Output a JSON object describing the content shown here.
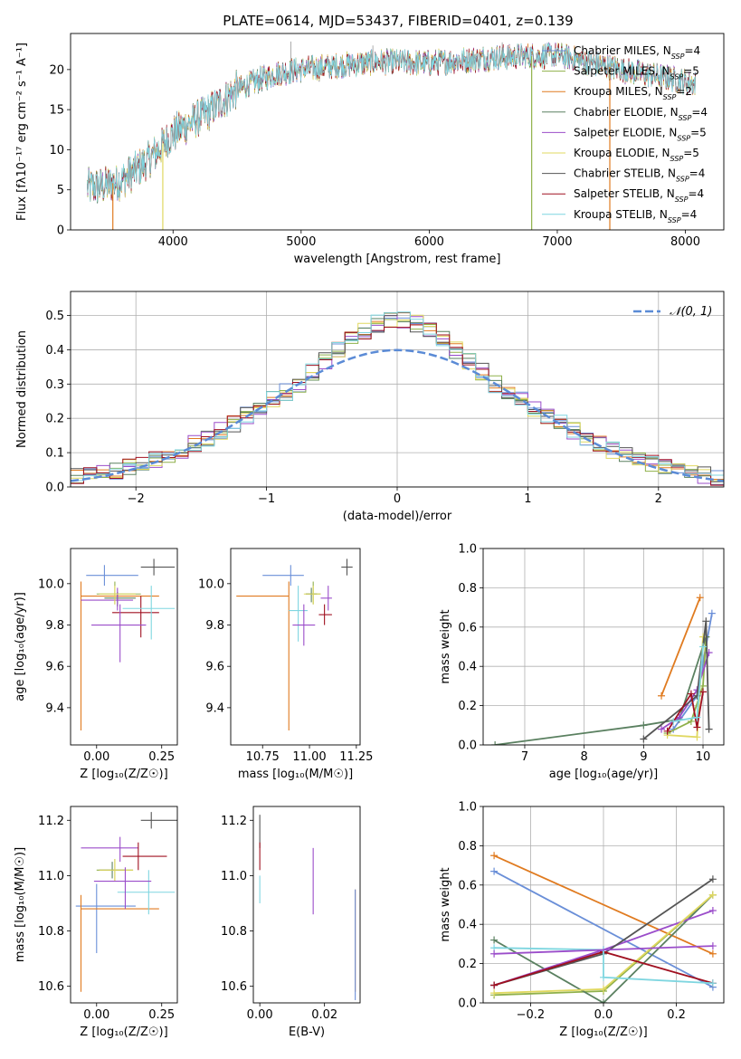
{
  "figure": {
    "title": "PLATE=0614, MJD=53437, FIBERID=0401, z=0.139"
  },
  "models": [
    {
      "name": "Chabrier MILES",
      "nssp": "4",
      "color": "#6a8fd8"
    },
    {
      "name": "Salpeter MILES",
      "nssp": "5",
      "color": "#8fb04a"
    },
    {
      "name": "Kroupa MILES",
      "nssp": "2",
      "color": "#e07b20"
    },
    {
      "name": "Chabrier ELODIE",
      "nssp": "4",
      "color": "#5a8060"
    },
    {
      "name": "Salpeter ELODIE",
      "nssp": "5",
      "color": "#9b4dca"
    },
    {
      "name": "Kroupa ELODIE",
      "nssp": "5",
      "color": "#e0d860"
    },
    {
      "name": "Chabrier STELIB",
      "nssp": "4",
      "color": "#555555"
    },
    {
      "name": "Salpeter STELIB",
      "nssp": "4",
      "color": "#a01020"
    },
    {
      "name": "Kroupa STELIB",
      "nssp": "4",
      "color": "#7fd6e0"
    }
  ],
  "chart_data": [
    {
      "id": "spectrum",
      "type": "line",
      "title": "PLATE=0614, MJD=53437, FIBERID=0401, z=0.139",
      "xlabel": "wavelength [Angstrom, rest frame]",
      "ylabel": "Flux [fλ10⁻¹⁷ erg cm⁻² s⁻¹ A⁻¹]",
      "xlim": [
        3200,
        8300
      ],
      "ylim": [
        0,
        24.5
      ],
      "xticks": [
        4000,
        5000,
        6000,
        7000,
        8000
      ],
      "yticks": [
        0,
        5,
        10,
        15,
        20
      ],
      "legend": "top-right",
      "continuum": {
        "x": [
          3330,
          3450,
          3600,
          3800,
          4000,
          4300,
          4500,
          4800,
          5000,
          5300,
          5600,
          6000,
          6500,
          7000,
          7500,
          8000,
          8080
        ],
        "y": [
          5.3,
          5.4,
          6.2,
          8.5,
          12.0,
          15.0,
          17.5,
          19.5,
          20.0,
          20.5,
          21.0,
          20.8,
          21.5,
          21.8,
          20.0,
          18.5,
          18.2
        ]
      },
      "spikes_down": [
        {
          "x": 3530,
          "y": 0
        },
        {
          "x": 3920,
          "y": 0
        },
        {
          "x": 6800,
          "y": 0
        },
        {
          "x": 7410,
          "y": 0
        }
      ],
      "spikes_up": [
        {
          "x": 4920,
          "y": 23.5
        },
        {
          "x": 5560,
          "y": 23.0
        },
        {
          "x": 6570,
          "y": 23.4
        }
      ]
    },
    {
      "id": "residuals",
      "type": "histogram",
      "xlabel": "(data-model)/error",
      "ylabel": "Normed distribution",
      "xlim": [
        -2.5,
        2.5
      ],
      "ylim": [
        0,
        0.57
      ],
      "xticks": [
        -2,
        -1,
        0,
        1,
        2
      ],
      "yticks": [
        0.0,
        0.1,
        0.2,
        0.3,
        0.4,
        0.5
      ],
      "bin_width": 0.1,
      "bin_start": -2.5,
      "grid": true,
      "legend": "top-right",
      "reference": {
        "name": "𝒩(0, 1)",
        "mean": 0,
        "sigma": 1,
        "color": "#5b8bd6"
      },
      "max_values": [
        0.54,
        0.53,
        0.52,
        0.5,
        0.49
      ],
      "notes": "per-model histograms follow the N(0,1) curve with a flattened top"
    },
    {
      "id": "age-vs-Z",
      "type": "errorbar",
      "xlabel": "Z [log₁₀(Z/Z☉)]",
      "ylabel": "age  [log₁₀(age/yr)]",
      "xlim": [
        -0.1,
        0.31
      ],
      "ylim": [
        9.22,
        10.17
      ],
      "xticks": [
        0.0,
        0.25
      ],
      "yticks": [
        9.4,
        9.6,
        9.8,
        10.0
      ],
      "points": [
        {
          "model": 0,
          "x": 0.03,
          "y": 10.04,
          "xerr": [
            0.07,
            0.13
          ],
          "yerr": [
            0.05,
            0.05
          ]
        },
        {
          "model": 1,
          "x": 0.07,
          "y": 9.95,
          "xerr": [
            0.07,
            0.1
          ],
          "yerr": [
            0.05,
            0.06
          ]
        },
        {
          "model": 2,
          "x": -0.06,
          "y": 9.94,
          "xerr": [
            0.0,
            0.3
          ],
          "yerr": [
            0.65,
            0.07
          ]
        },
        {
          "model": 3,
          "x": 0.08,
          "y": 9.93,
          "xerr": [
            0.05,
            0.07
          ],
          "yerr": [
            0.04,
            0.03
          ]
        },
        {
          "model": 4,
          "x": 0.08,
          "y": 9.92,
          "xerr": [
            0.14,
            0.06
          ],
          "yerr": [
            0.05,
            0.06
          ]
        },
        {
          "model": 5,
          "x": 0.07,
          "y": 9.95,
          "xerr": [
            0.06,
            0.08
          ],
          "yerr": [
            0.05,
            0.04
          ]
        },
        {
          "model": 6,
          "x": 0.22,
          "y": 10.08,
          "xerr": [
            0.05,
            0.08
          ],
          "yerr": [
            0.04,
            0.04
          ]
        },
        {
          "model": 7,
          "x": 0.17,
          "y": 9.86,
          "xerr": [
            0.11,
            0.07
          ],
          "yerr": [
            0.12,
            0.08
          ]
        },
        {
          "model": 8,
          "x": 0.21,
          "y": 9.88,
          "xerr": [
            0.11,
            0.09
          ],
          "yerr": [
            0.15,
            0.11
          ]
        },
        {
          "model": 4,
          "x": 0.09,
          "y": 9.8,
          "xerr": [
            0.11,
            0.1
          ],
          "yerr": [
            0.18,
            0.1
          ]
        }
      ]
    },
    {
      "id": "age-vs-mass",
      "type": "errorbar",
      "xlabel": "mass [log₁₀(M/M☉)]",
      "xlim": [
        10.58,
        11.27
      ],
      "ylim": [
        9.22,
        10.17
      ],
      "xticks": [
        10.75,
        11.0,
        11.25
      ],
      "yticks": [
        9.4,
        9.6,
        9.8,
        10.0
      ],
      "points": [
        {
          "model": 0,
          "x": 10.9,
          "y": 10.04,
          "xerr": [
            0.15,
            0.07
          ],
          "yerr": [
            0.05,
            0.05
          ]
        },
        {
          "model": 1,
          "x": 11.02,
          "y": 9.95,
          "xerr": [
            0.04,
            0.04
          ],
          "yerr": [
            0.05,
            0.06
          ]
        },
        {
          "model": 2,
          "x": 10.89,
          "y": 9.94,
          "xerr": [
            0.28,
            0.0
          ],
          "yerr": [
            0.65,
            0.07
          ]
        },
        {
          "model": 3,
          "x": 11.01,
          "y": 9.95,
          "xerr": [
            0.03,
            0.03
          ],
          "yerr": [
            0.04,
            0.03
          ]
        },
        {
          "model": 4,
          "x": 11.1,
          "y": 9.93,
          "xerr": [
            0.04,
            0.02
          ],
          "yerr": [
            0.06,
            0.06
          ]
        },
        {
          "model": 5,
          "x": 11.02,
          "y": 9.95,
          "xerr": [
            0.05,
            0.04
          ],
          "yerr": [
            0.05,
            0.04
          ]
        },
        {
          "model": 6,
          "x": 11.2,
          "y": 10.08,
          "xerr": [
            0.03,
            0.03
          ],
          "yerr": [
            0.04,
            0.04
          ]
        },
        {
          "model": 7,
          "x": 11.08,
          "y": 9.85,
          "xerr": [
            0.03,
            0.04
          ],
          "yerr": [
            0.05,
            0.05
          ]
        },
        {
          "model": 8,
          "x": 10.94,
          "y": 9.87,
          "xerr": [
            0.05,
            0.05
          ],
          "yerr": [
            0.15,
            0.12
          ]
        },
        {
          "model": 4,
          "x": 10.97,
          "y": 9.8,
          "xerr": [
            0.06,
            0.06
          ],
          "yerr": [
            0.1,
            0.1
          ]
        }
      ]
    },
    {
      "id": "massweight-vs-age",
      "type": "line",
      "xlabel": "age  [log₁₀(age/yr)]",
      "ylabel": "mass weight",
      "xlim": [
        6.3,
        10.35
      ],
      "ylim": [
        0,
        1.0
      ],
      "xticks": [
        7,
        8,
        9,
        10
      ],
      "yticks": [
        0.0,
        0.2,
        0.4,
        0.6,
        0.8,
        1.0
      ],
      "grid": true,
      "series": [
        {
          "model": 0,
          "x": [
            9.5,
            9.9,
            10.15
          ],
          "y": [
            0.08,
            0.25,
            0.67
          ]
        },
        {
          "model": 1,
          "x": [
            9.4,
            9.8,
            10.0,
            10.05
          ],
          "y": [
            0.06,
            0.12,
            0.3,
            0.55
          ]
        },
        {
          "model": 2,
          "x": [
            9.3,
            9.95
          ],
          "y": [
            0.25,
            0.75
          ]
        },
        {
          "model": 3,
          "x": [
            6.5,
            9.0,
            9.6,
            10.05
          ],
          "y": [
            0.0,
            0.1,
            0.13,
            0.55
          ]
        },
        {
          "model": 4,
          "x": [
            9.3,
            9.6,
            9.9,
            10.1
          ],
          "y": [
            0.08,
            0.14,
            0.28,
            0.47
          ]
        },
        {
          "model": 5,
          "x": [
            9.4,
            9.9,
            10.0
          ],
          "y": [
            0.05,
            0.04,
            0.55
          ]
        },
        {
          "model": 6,
          "x": [
            9.0,
            9.9,
            10.05,
            10.1
          ],
          "y": [
            0.03,
            0.25,
            0.63,
            0.08
          ]
        },
        {
          "model": 7,
          "x": [
            9.4,
            9.8,
            9.9,
            10.0
          ],
          "y": [
            0.07,
            0.26,
            0.09,
            0.27
          ]
        },
        {
          "model": 8,
          "x": [
            9.5,
            9.9,
            10.0
          ],
          "y": [
            0.12,
            0.14,
            0.5
          ]
        }
      ]
    },
    {
      "id": "mass-vs-Z",
      "type": "errorbar",
      "xlabel": "Z [log₁₀(Z/Z☉)]",
      "ylabel": "mass [log₁₀(M/M☉)]",
      "xlim": [
        -0.1,
        0.31
      ],
      "ylim": [
        10.54,
        11.25
      ],
      "xticks": [
        0.0,
        0.25
      ],
      "yticks": [
        10.6,
        10.8,
        11.0,
        11.2
      ],
      "points": [
        {
          "model": 0,
          "x": 0.0,
          "y": 10.89,
          "xerr": [
            0.08,
            0.15
          ],
          "yerr": [
            0.17,
            0.08
          ]
        },
        {
          "model": 1,
          "x": 0.07,
          "y": 11.02,
          "xerr": [
            0.07,
            0.07
          ],
          "yerr": [
            0.04,
            0.04
          ]
        },
        {
          "model": 2,
          "x": -0.06,
          "y": 10.88,
          "xerr": [
            0.0,
            0.3
          ],
          "yerr": [
            0.3,
            0.05
          ]
        },
        {
          "model": 3,
          "x": 0.06,
          "y": 11.02,
          "xerr": [
            0.05,
            0.05
          ],
          "yerr": [
            0.03,
            0.03
          ]
        },
        {
          "model": 4,
          "x": 0.09,
          "y": 11.1,
          "xerr": [
            0.15,
            0.07
          ],
          "yerr": [
            0.05,
            0.04
          ]
        },
        {
          "model": 5,
          "x": 0.07,
          "y": 11.02,
          "xerr": [
            0.06,
            0.07
          ],
          "yerr": [
            0.04,
            0.04
          ]
        },
        {
          "model": 6,
          "x": 0.21,
          "y": 11.2,
          "xerr": [
            0.04,
            0.1
          ],
          "yerr": [
            0.03,
            0.03
          ]
        },
        {
          "model": 7,
          "x": 0.16,
          "y": 11.07,
          "xerr": [
            0.06,
            0.11
          ],
          "yerr": [
            0.05,
            0.05
          ]
        },
        {
          "model": 8,
          "x": 0.2,
          "y": 10.94,
          "xerr": [
            0.12,
            0.1
          ],
          "yerr": [
            0.08,
            0.08
          ]
        },
        {
          "model": 4,
          "x": 0.11,
          "y": 10.98,
          "xerr": [
            0.12,
            0.1
          ],
          "yerr": [
            0.1,
            0.05
          ]
        }
      ]
    },
    {
      "id": "mass-vs-ebv",
      "type": "errorbar",
      "xlabel": "E(B-V)",
      "xlim": [
        -0.002,
        0.031
      ],
      "ylim": [
        10.54,
        11.25
      ],
      "xticks": [
        0.0,
        0.02
      ],
      "yticks": [
        10.6,
        10.8,
        11.0,
        11.2
      ],
      "points": [
        {
          "model": 6,
          "x": 0.0,
          "y": 11.16,
          "xerr": [
            0,
            0
          ],
          "yerr": [
            0.06,
            0.06
          ]
        },
        {
          "model": 7,
          "x": 0.0,
          "y": 11.07,
          "xerr": [
            0,
            0
          ],
          "yerr": [
            0.05,
            0.05
          ]
        },
        {
          "model": 8,
          "x": 0.0,
          "y": 10.95,
          "xerr": [
            0,
            0
          ],
          "yerr": [
            0.05,
            0.05
          ]
        },
        {
          "model": 4,
          "x": 0.0165,
          "y": 10.98,
          "xerr": [
            0,
            0
          ],
          "yerr": [
            0.12,
            0.12
          ]
        },
        {
          "model": 2,
          "x": 0.0295,
          "y": 10.88,
          "xerr": [
            0,
            0
          ],
          "yerr": [
            0.3,
            0.07
          ]
        },
        {
          "model": 0,
          "x": 0.0295,
          "y": 10.75,
          "xerr": [
            0,
            0
          ],
          "yerr": [
            0.2,
            0.2
          ]
        }
      ]
    },
    {
      "id": "massweight-vs-Z",
      "type": "line",
      "xlabel": "Z [log₁₀(Z/Z☉)]",
      "ylabel": "mass weight",
      "xlim": [
        -0.33,
        0.33
      ],
      "ylim": [
        0,
        1.0
      ],
      "xticks": [
        -0.2,
        0.0,
        0.2
      ],
      "yticks": [
        0.0,
        0.2,
        0.4,
        0.6,
        0.8,
        1.0
      ],
      "grid": true,
      "series": [
        {
          "model": 0,
          "x": [
            -0.3,
            0.3
          ],
          "y": [
            0.67,
            0.08
          ]
        },
        {
          "model": 1,
          "x": [
            -0.3,
            0.0,
            0.3
          ],
          "y": [
            0.04,
            0.06,
            0.55
          ]
        },
        {
          "model": 2,
          "x": [
            -0.3,
            0.3
          ],
          "y": [
            0.75,
            0.25
          ]
        },
        {
          "model": 3,
          "x": [
            -0.3,
            0.0,
            0.3
          ],
          "y": [
            0.32,
            0.0,
            0.55
          ]
        },
        {
          "model": 4,
          "x": [
            -0.3,
            0.0,
            0.3
          ],
          "y": [
            0.09,
            0.27,
            0.47
          ]
        },
        {
          "model": 5,
          "x": [
            -0.3,
            0.0,
            0.3
          ],
          "y": [
            0.05,
            0.07,
            0.55
          ]
        },
        {
          "model": 6,
          "x": [
            -0.3,
            0.0,
            0.3
          ],
          "y": [
            0.09,
            0.25,
            0.63
          ]
        },
        {
          "model": 7,
          "x": [
            -0.3,
            0.0,
            0.3
          ],
          "y": [
            0.09,
            0.26,
            0.1
          ]
        },
        {
          "model": 8,
          "x": [
            -0.3,
            0.0,
            0.0,
            0.3
          ],
          "y": [
            0.28,
            0.27,
            0.13,
            0.1
          ]
        },
        {
          "model": 4,
          "x": [
            -0.3,
            0.3
          ],
          "y": [
            0.25,
            0.29
          ]
        }
      ]
    }
  ]
}
